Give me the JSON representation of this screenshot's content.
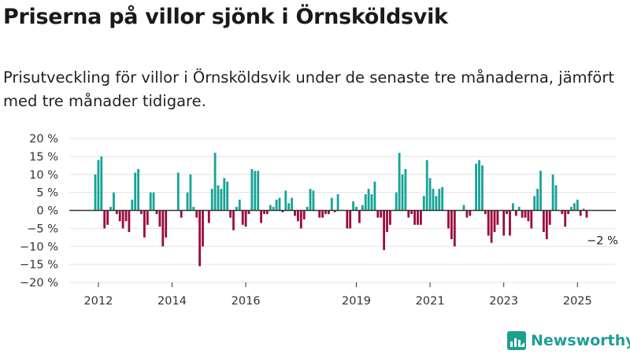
{
  "title": "Priserna på villor sjönk i Örnsköldsvik",
  "subtitle": "Prisutveckling för villor i Örnsköldsvik under de senaste tre månaderna, jämfört med tre månader tidigare.",
  "brand": {
    "name": "Newsworthy",
    "icon": "newsworthy-logo-icon"
  },
  "colors": {
    "positive": "#17a398",
    "negative": "#9c0a3e",
    "grid": "#e3e3e3",
    "zero_line": "#333333",
    "text": "#333333"
  },
  "chart_data": {
    "type": "bar",
    "x_unit": "month",
    "x_start": "2011-12",
    "x_end": "2025-03",
    "ylim": [
      -20,
      20
    ],
    "yticks": [
      20,
      15,
      10,
      5,
      0,
      -5,
      -10,
      -15,
      -20
    ],
    "ytick_labels": [
      "20 %",
      "15 %",
      "10 %",
      "5 %",
      "0 %",
      "−5 %",
      "−10 %",
      "−15 %",
      "−20 %"
    ],
    "xticks": [
      "2012",
      "2014",
      "2016",
      "2019",
      "2021",
      "2023",
      "2025"
    ],
    "grid": true,
    "annotation": {
      "text": "−2 %",
      "value": -2
    },
    "values": [
      10,
      14,
      15,
      -5,
      -4,
      1,
      5,
      -1,
      -3,
      -5,
      -3,
      -6,
      3,
      10.5,
      11.5,
      -1,
      -7.5,
      -4,
      5,
      5,
      -1,
      -4.5,
      -10,
      -7.5,
      0,
      0,
      0,
      10.5,
      -2,
      0,
      5,
      10,
      1,
      -2,
      -15.5,
      -10,
      0,
      -3.5,
      6,
      16,
      7,
      6,
      9,
      8,
      -2,
      -5.5,
      1,
      3,
      -4,
      -4.5,
      -1,
      11.5,
      11,
      11,
      -3.5,
      -1,
      -1,
      1.5,
      1,
      3,
      3.5,
      -0.5,
      5.5,
      2,
      3.5,
      -1.5,
      -3,
      -5,
      -2.5,
      1,
      6,
      5.5,
      0,
      -2,
      -2,
      -1,
      -1,
      3.5,
      -0.5,
      4.5,
      0,
      0,
      -5,
      -5,
      2.5,
      1,
      -3.5,
      1.5,
      4.5,
      6,
      4.5,
      8,
      -2,
      -2,
      -11,
      -6,
      -4,
      0,
      5,
      16,
      10,
      11.5,
      -2,
      -1,
      -4,
      -4,
      -4,
      4,
      14,
      9,
      6,
      4,
      6,
      6.5,
      0,
      -5,
      -8,
      -10,
      0,
      0,
      1.5,
      -2,
      -1.5,
      0,
      13,
      14,
      12.5,
      -1,
      -7,
      -9,
      -6,
      -4,
      0,
      -7,
      -1,
      -7,
      2,
      -1.5,
      1,
      -2,
      -2,
      -3,
      -5,
      4,
      6,
      11,
      -6,
      -8,
      -4,
      10,
      7,
      0,
      -1,
      -4.5,
      -1,
      1,
      2,
      3,
      -1.5,
      0.5,
      -2
    ]
  }
}
